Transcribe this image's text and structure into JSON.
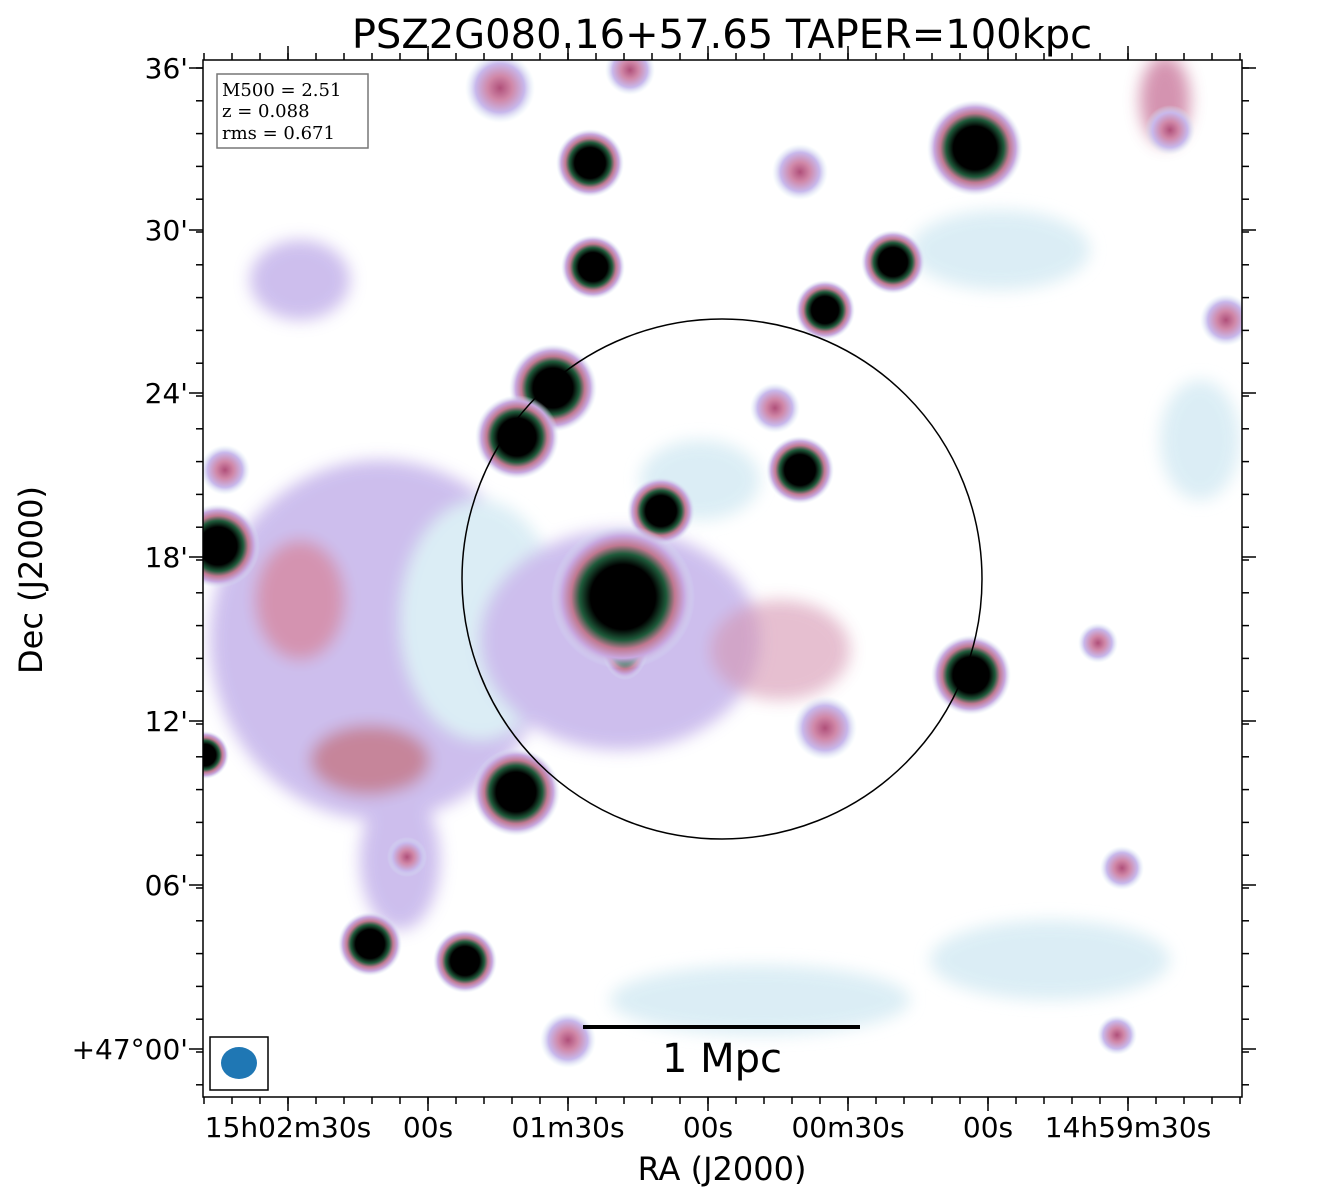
{
  "title": "PSZ2G080.16+57.65 TAPER=100kpc",
  "xlabel": "RA (J2000)",
  "ylabel": "Dec (J2000)",
  "xtick_labels": [
    "15h02m30s",
    "00s",
    "01m30s",
    "00s",
    "00m30s",
    "00s",
    "14h59m30s"
  ],
  "ytick_labels": [
    "36'",
    "30'",
    "24'",
    "18'",
    "12'",
    "06'",
    "+47°00'"
  ],
  "info": [
    "M500 = 2.51",
    "z = 0.088",
    "rms = 0.671"
  ],
  "scalebar": "1 Mpc"
}
